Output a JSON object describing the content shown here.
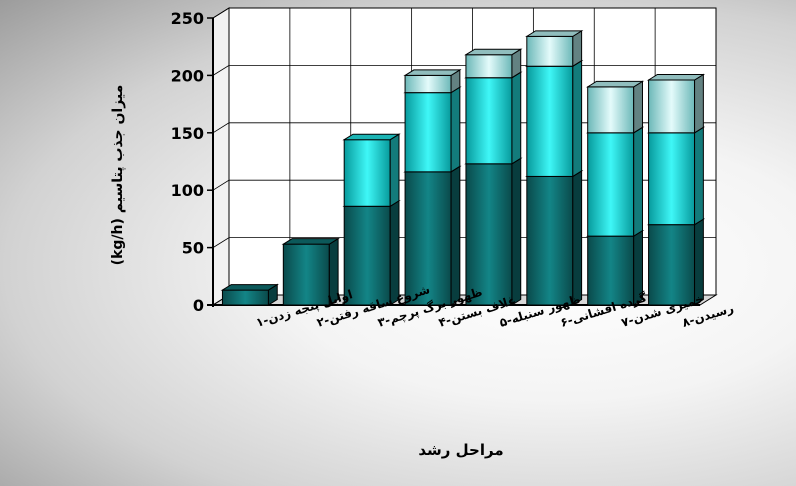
{
  "chart_data": {
    "type": "bar",
    "stacked": true,
    "three_d": true,
    "ylabel": "میزان جذب پتاسیم (kg/h)",
    "xlabel": "مراحل رشد",
    "ylim": [
      0,
      250
    ],
    "yticks": [
      0,
      50,
      100,
      150,
      200,
      250
    ],
    "grid": true,
    "categories": [
      "اوایل پنجه زدن-۱",
      "شروع ساقه رفتن-۲",
      "ظهور برگ پرچم-۳",
      "غلاف بستن-۴",
      "ظهور سنبله-۵",
      "گرده افشانی-۶",
      "خمیری شدن-۷",
      "رسیدن-۸"
    ],
    "series": [
      {
        "values": [
          13,
          53,
          86,
          116,
          123,
          112,
          60,
          70
        ],
        "color": "#0f6f70"
      },
      {
        "values": [
          0,
          0,
          58,
          69,
          75,
          96,
          90,
          80
        ],
        "color": "#22e0e0"
      },
      {
        "values": [
          0,
          0,
          0,
          15,
          20,
          26,
          40,
          46
        ],
        "color": "#b4ecec"
      }
    ]
  }
}
